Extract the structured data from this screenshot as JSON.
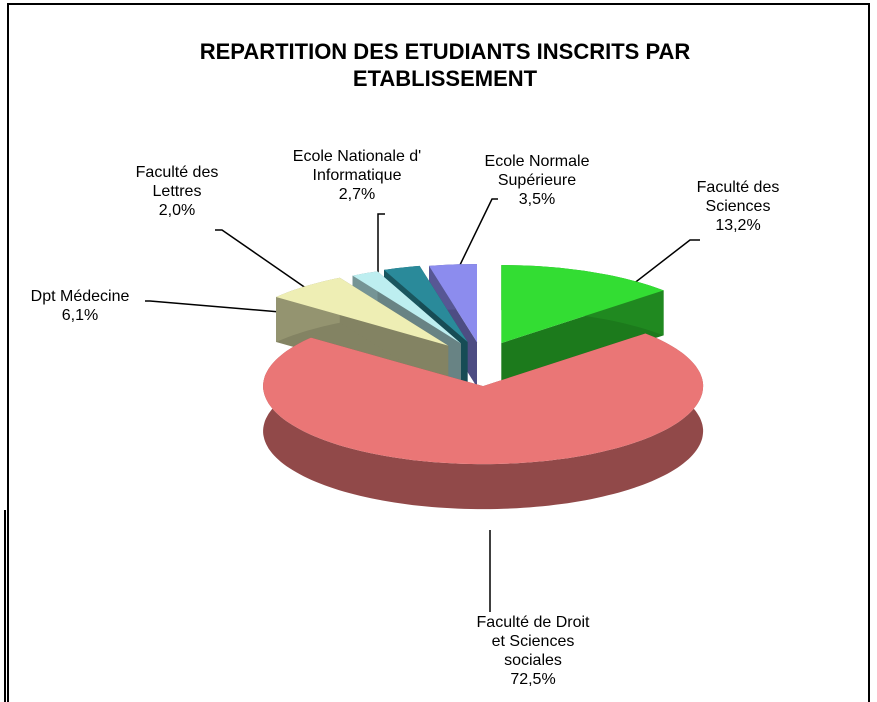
{
  "chart_data": {
    "type": "pie3d",
    "title": "REPARTITION DES ETUDIANTS INSCRITS PAR ETABLISSEMENT",
    "categories": [
      "Faculté des Sciences",
      "Faculté de Droit et Sciences sociales",
      "Dpt Médecine",
      "Faculté des Lettres",
      "Ecole Nationale d' Informatique",
      "Ecole Normale Supérieure"
    ],
    "values": [
      13.2,
      72.5,
      6.1,
      2.0,
      2.7,
      3.5
    ],
    "value_labels": [
      "13,2%",
      "72,5%",
      "6,1%",
      "2,0%",
      "2,7%",
      "3,5%"
    ],
    "colors": [
      "#33dd33",
      "#ea7676",
      "#eeeeb4",
      "#bdeef0",
      "#2a8a9a",
      "#8c8cee"
    ]
  }
}
